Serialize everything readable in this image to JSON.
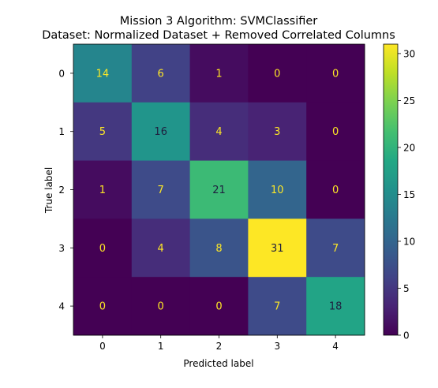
{
  "chart_data": {
    "type": "heatmap",
    "title_lines": [
      "Mission 3 Algorithm: SVMClassifier",
      "Dataset: Normalized Dataset + Removed Correlated Columns"
    ],
    "xlabel": "Predicted label",
    "ylabel": "True label",
    "x_categories": [
      "0",
      "1",
      "2",
      "3",
      "4"
    ],
    "y_categories": [
      "0",
      "1",
      "2",
      "3",
      "4"
    ],
    "matrix": [
      [
        14,
        6,
        1,
        0,
        0
      ],
      [
        5,
        16,
        4,
        3,
        0
      ],
      [
        1,
        7,
        21,
        10,
        0
      ],
      [
        0,
        4,
        8,
        31,
        7
      ],
      [
        0,
        0,
        0,
        7,
        18
      ]
    ],
    "colormap": "viridis",
    "value_range": [
      0,
      31
    ],
    "colorbar_ticks": [
      0,
      5,
      10,
      15,
      20,
      25,
      30
    ],
    "text_color_on_dark": "#fde725",
    "text_color_on_light": "#1f1f3f",
    "colorbar_position": "right"
  }
}
